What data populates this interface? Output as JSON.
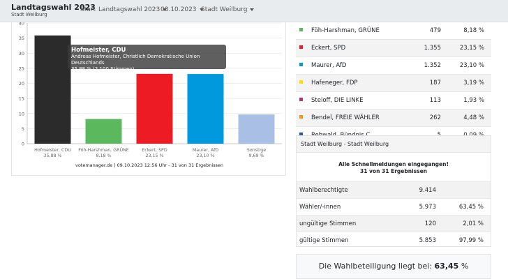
{
  "brand": {
    "title": "Landtagswahl 2023",
    "subtitle": "Stadt Weilburg"
  },
  "nav": {
    "start": "Start",
    "election": "Landtagswahl 2023",
    "date": "08.10.2023",
    "area": "Stadt Weilburg"
  },
  "chart_data": {
    "type": "bar",
    "ylim": [
      0,
      40
    ],
    "yticks": [
      "0",
      "5",
      "10",
      "15",
      "20",
      "25",
      "30",
      "35",
      "40"
    ],
    "categories": [
      "Hofmeister, CDU",
      "Föh-Harshman, GRÜNE",
      "Eckert, SPD",
      "Maurer, AfD",
      "Sonstige"
    ],
    "pct_labels": [
      "35,88 %",
      "8,18 %",
      "23,15 %",
      "23,10 %",
      "9,69 %"
    ],
    "values": [
      35.88,
      8.18,
      23.15,
      23.1,
      9.69
    ],
    "colors": [
      "#2b2b2b",
      "#5cb85c",
      "#ed1c24",
      "#0099dd",
      "#a9bfe5"
    ],
    "footer": "votemanager.de | 09.10.2023 12:56 Uhr - 31 von 31 Ergebnissen"
  },
  "tooltip": {
    "title": "Hofmeister, CDU",
    "line1": "Andreas Hofmeister, Christlich Demokratische Union Deutschlands",
    "line2": "35,88 % (2.100 Stimmen)"
  },
  "parties": [
    {
      "name": "Föh-Harshman, GRÜNE",
      "votes": "479",
      "pct": "8,18 %",
      "color": "#5cb85c"
    },
    {
      "name": "Eckert, SPD",
      "votes": "1.355",
      "pct": "23,15 %",
      "color": "#ed1c24"
    },
    {
      "name": "Maurer, AfD",
      "votes": "1.352",
      "pct": "23,10 %",
      "color": "#0099dd"
    },
    {
      "name": "Hafeneger, FDP",
      "votes": "187",
      "pct": "3,19 %",
      "color": "#ffe000"
    },
    {
      "name": "Steioff, DIE LINKE",
      "votes": "113",
      "pct": "1,93 %",
      "color": "#be3075"
    },
    {
      "name": "Bendel, FREIE WÄHLER",
      "votes": "262",
      "pct": "4,48 %",
      "color": "#f7941d"
    },
    {
      "name": "Rehwald, Bündnis C",
      "votes": "5",
      "pct": "0,09 %",
      "color": "#1e5aa8"
    }
  ],
  "stats": {
    "header": "Stadt Weilburg - Stadt Weilburg",
    "notice1": "Alle Schnellmeldungen eingegangen!",
    "notice2": "31 von 31 Ergebnissen",
    "rows": [
      {
        "label": "Wahlberechtigte",
        "value": "9.414",
        "pct": ""
      },
      {
        "label": "Wähler/-innen",
        "value": "5.973",
        "pct": "63,45 %"
      },
      {
        "label": "ungültige Stimmen",
        "value": "120",
        "pct": "2,01 %"
      },
      {
        "label": "gültige Stimmen",
        "value": "5.853",
        "pct": "97,99 %"
      }
    ]
  },
  "turnout": {
    "label": "Die Wahlbeteiligung liegt bei:",
    "value": "63,45",
    "unit": "%"
  }
}
